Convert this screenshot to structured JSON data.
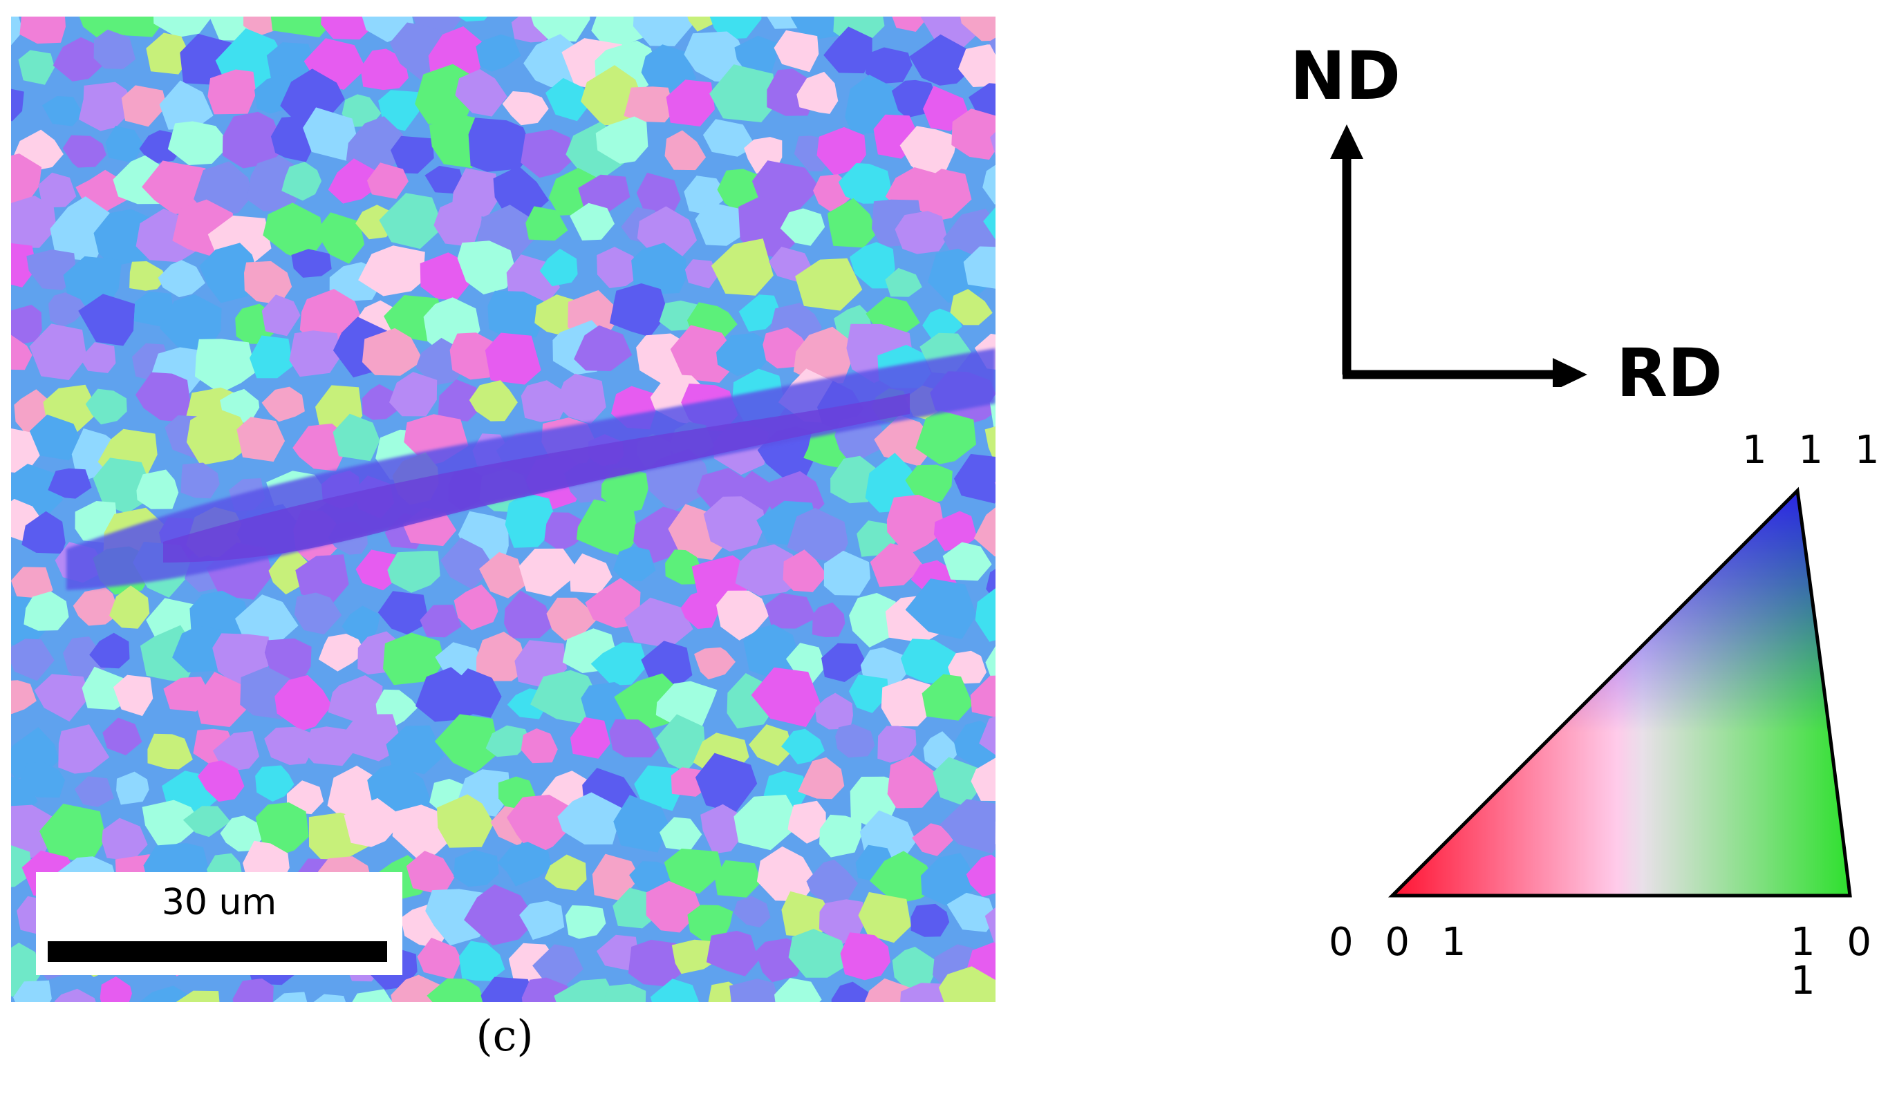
{
  "figure": {
    "panel_label": "(c)",
    "scale_bar_label": "30 um",
    "directions": {
      "normal": "ND",
      "rolling": "RD"
    },
    "ipf_key": {
      "corner_top": "1 1 1",
      "corner_left": "0 0 1",
      "corner_right": "1 0 1",
      "colors": {
        "001": "#ff0000",
        "101": "#00ff00",
        "111": "#0000ff"
      }
    },
    "map_colors": [
      "#4fa8f0",
      "#7f8df0",
      "#9b6cf0",
      "#3fe0f0",
      "#f07fd8",
      "#5cf07a",
      "#b68af5",
      "#f5a3c8",
      "#6fe8c8",
      "#e65cf0",
      "#8fd8ff",
      "#c7f07a",
      "#5a5cf0",
      "#a0ffe0",
      "#ffd0e8"
    ]
  }
}
